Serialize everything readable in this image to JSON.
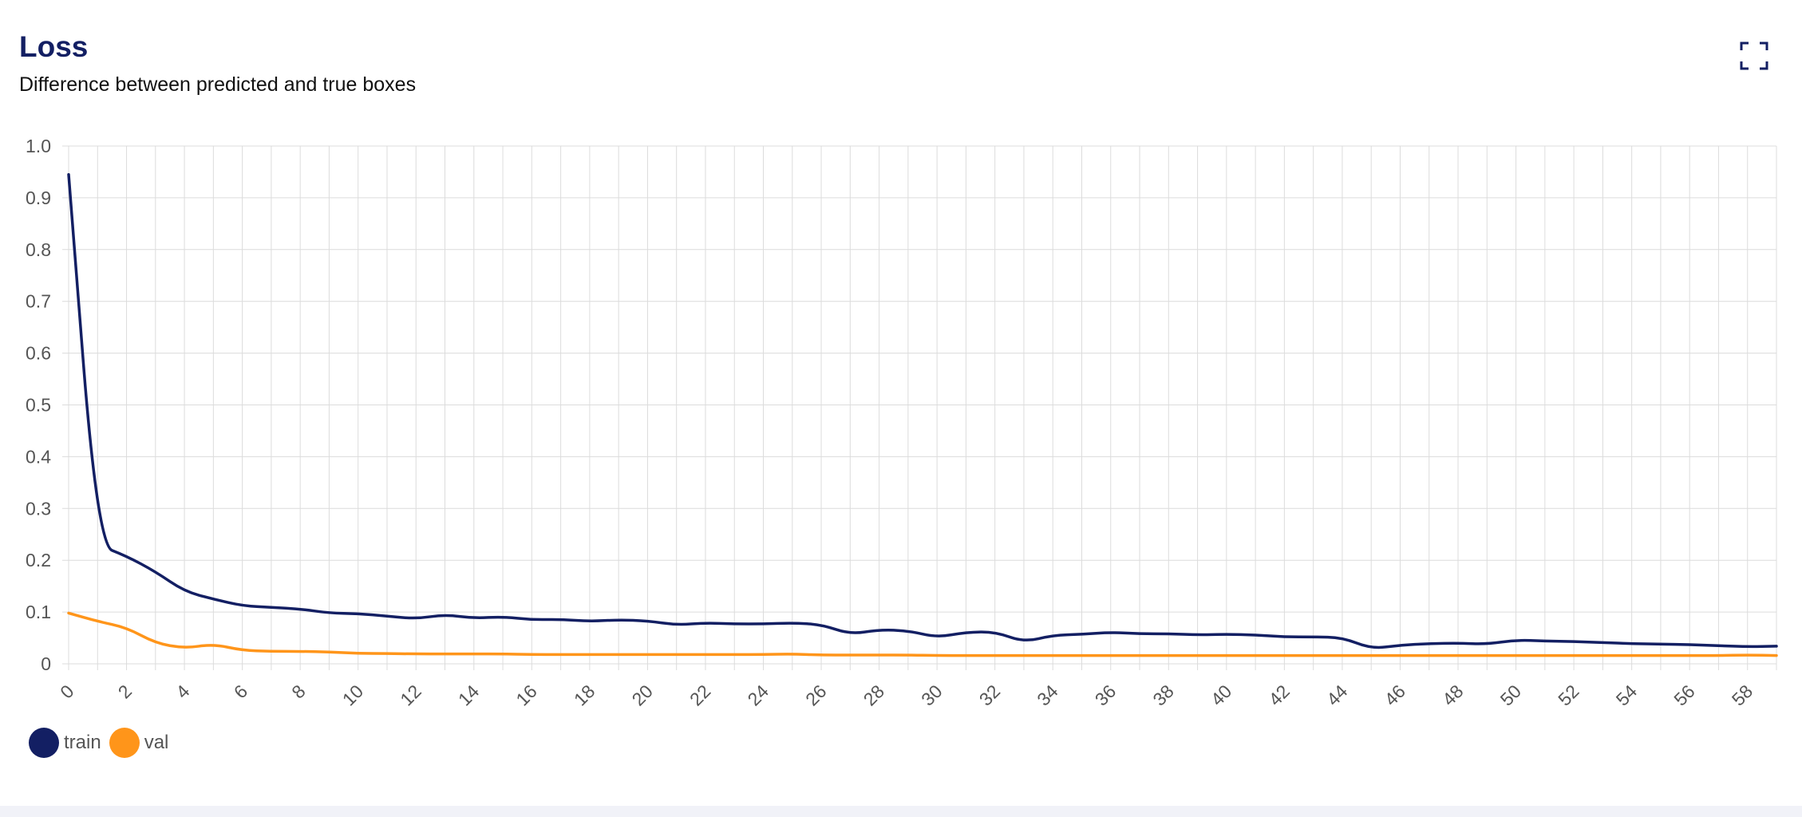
{
  "header": {
    "title": "Loss",
    "subtitle": "Difference between predicted and true boxes"
  },
  "toolbar": {
    "fullscreen_icon": "fullscreen-icon"
  },
  "colors": {
    "train": "#131f63",
    "val": "#ff951a",
    "grid": "#dcdcdc",
    "axis_text": "#555555"
  },
  "chart_data": {
    "type": "line",
    "title": "Loss",
    "xlabel": "",
    "ylabel": "",
    "ylim": [
      0,
      1.0
    ],
    "xlim": [
      0,
      59
    ],
    "yticks": [
      "0",
      "0.1",
      "0.2",
      "0.3",
      "0.4",
      "0.5",
      "0.6",
      "0.7",
      "0.8",
      "0.9",
      "1.0"
    ],
    "xticks": [
      "0",
      "2",
      "4",
      "6",
      "8",
      "10",
      "12",
      "14",
      "16",
      "18",
      "20",
      "22",
      "24",
      "26",
      "28",
      "30",
      "32",
      "34",
      "36",
      "38",
      "40",
      "42",
      "44",
      "46",
      "48",
      "50",
      "52",
      "54",
      "56",
      "58"
    ],
    "x": [
      0,
      1,
      2,
      3,
      4,
      5,
      6,
      7,
      8,
      9,
      10,
      11,
      12,
      13,
      14,
      15,
      16,
      17,
      18,
      19,
      20,
      21,
      22,
      23,
      24,
      25,
      26,
      27,
      28,
      29,
      30,
      31,
      32,
      33,
      34,
      35,
      36,
      37,
      38,
      39,
      40,
      41,
      42,
      43,
      44,
      45,
      46,
      47,
      48,
      49,
      50,
      51,
      52,
      53,
      54,
      55,
      56,
      57,
      58,
      59
    ],
    "grid": true,
    "legend_position": "bottom-left",
    "series": [
      {
        "name": "train",
        "values": [
          0.945,
          0.23,
          0.208,
          0.178,
          0.14,
          0.125,
          0.112,
          0.109,
          0.106,
          0.098,
          0.097,
          0.092,
          0.087,
          0.095,
          0.088,
          0.091,
          0.085,
          0.086,
          0.082,
          0.085,
          0.083,
          0.075,
          0.079,
          0.077,
          0.077,
          0.079,
          0.076,
          0.057,
          0.066,
          0.064,
          0.051,
          0.061,
          0.062,
          0.042,
          0.055,
          0.057,
          0.061,
          0.058,
          0.058,
          0.056,
          0.057,
          0.056,
          0.052,
          0.052,
          0.051,
          0.029,
          0.036,
          0.039,
          0.04,
          0.038,
          0.046,
          0.044,
          0.043,
          0.041,
          0.039,
          0.038,
          0.037,
          0.035,
          0.033,
          0.034
        ]
      },
      {
        "name": "val",
        "values": [
          0.098,
          0.082,
          0.07,
          0.04,
          0.03,
          0.038,
          0.026,
          0.024,
          0.024,
          0.023,
          0.02,
          0.02,
          0.019,
          0.019,
          0.019,
          0.019,
          0.018,
          0.018,
          0.018,
          0.018,
          0.018,
          0.018,
          0.018,
          0.018,
          0.018,
          0.019,
          0.017,
          0.017,
          0.017,
          0.017,
          0.016,
          0.016,
          0.016,
          0.016,
          0.016,
          0.016,
          0.016,
          0.016,
          0.016,
          0.016,
          0.016,
          0.016,
          0.016,
          0.016,
          0.016,
          0.016,
          0.016,
          0.016,
          0.016,
          0.016,
          0.016,
          0.016,
          0.016,
          0.016,
          0.016,
          0.016,
          0.016,
          0.016,
          0.017,
          0.016
        ]
      }
    ]
  }
}
